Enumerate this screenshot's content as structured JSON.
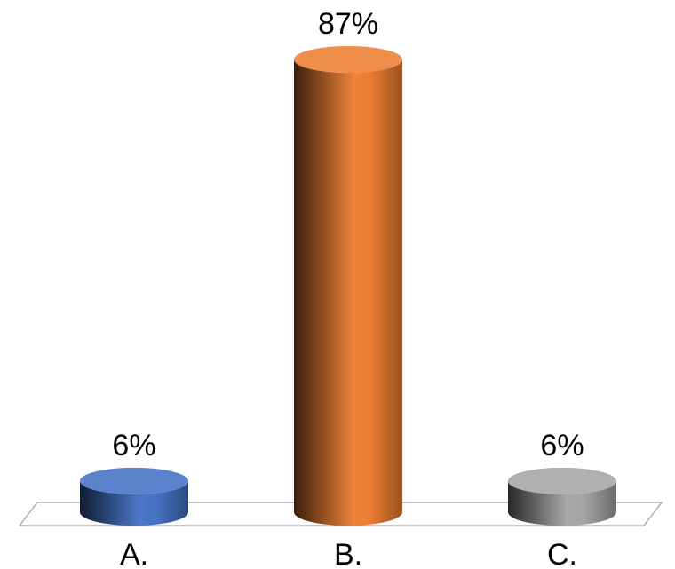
{
  "chart_data": {
    "type": "bar",
    "style": "3d-cylinder",
    "categories": [
      "A.",
      "B.",
      "C."
    ],
    "values": [
      6,
      87,
      6
    ],
    "data_labels": [
      "6%",
      "87%",
      "6%"
    ],
    "colors": [
      "#4472C4",
      "#ED7D31",
      "#A5A5A5"
    ],
    "ylim": [
      0,
      87
    ],
    "grid": false,
    "legend": "none"
  }
}
